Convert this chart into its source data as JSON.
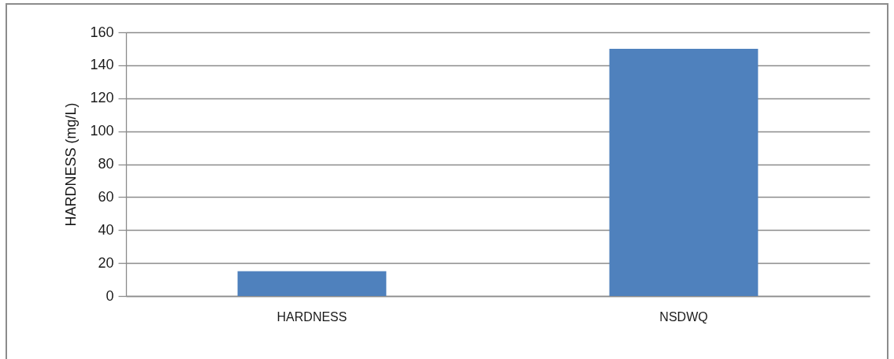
{
  "chart_data": {
    "type": "bar",
    "ylabel": "HARDNESS (mg/L)",
    "categories": [
      "HARDNESS",
      "NSDWQ"
    ],
    "values": [
      15,
      150
    ],
    "color": "#4f81bd",
    "ylim": [
      0,
      160
    ],
    "yticks": [
      0,
      20,
      40,
      60,
      80,
      100,
      120,
      140,
      160
    ],
    "grid": "y"
  }
}
